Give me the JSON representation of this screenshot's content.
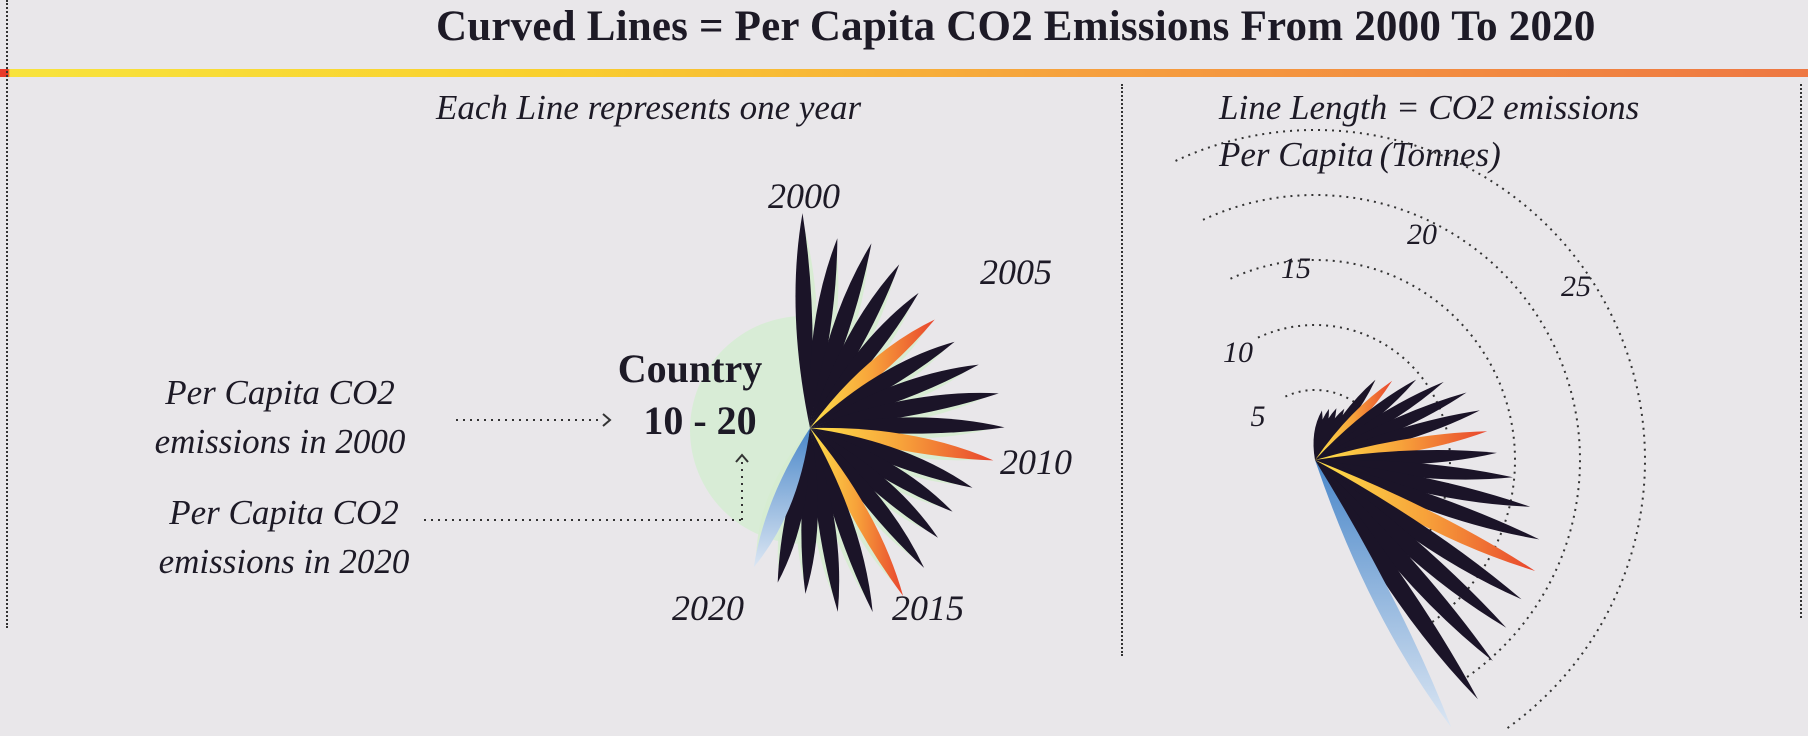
{
  "title": "Curved Lines = Per Capita CO2 Emissions From 2000 To 2020",
  "subtitle_left": "Each Line  represents one year",
  "subtitle_right": {
    "line1": "Line Length = CO2 emissions",
    "line2": "Per Capita",
    "unit": "(Tonnes)"
  },
  "annotations": {
    "start": {
      "line1": "Per Capita CO2",
      "line2": "emissions in 2000"
    },
    "end": {
      "line1": "Per Capita CO2",
      "line2": "emissions in 2020"
    }
  },
  "country_label": {
    "line1": "Country",
    "line2": "10 - 20"
  },
  "year_labels": [
    "2000",
    "2005",
    "2010",
    "2015",
    "2020"
  ],
  "scale_ticks": [
    "5",
    "10",
    "15",
    "20",
    "25"
  ],
  "colors": {
    "background": "#e9e7ea",
    "petal_dark": "#1b1428",
    "highlight_gradient": [
      "#e8452e",
      "#f7a23a",
      "#fde04a"
    ],
    "end_gradient": [
      "#4a87c9",
      "#c9daee"
    ],
    "circle": "#d8ecd6"
  }
}
